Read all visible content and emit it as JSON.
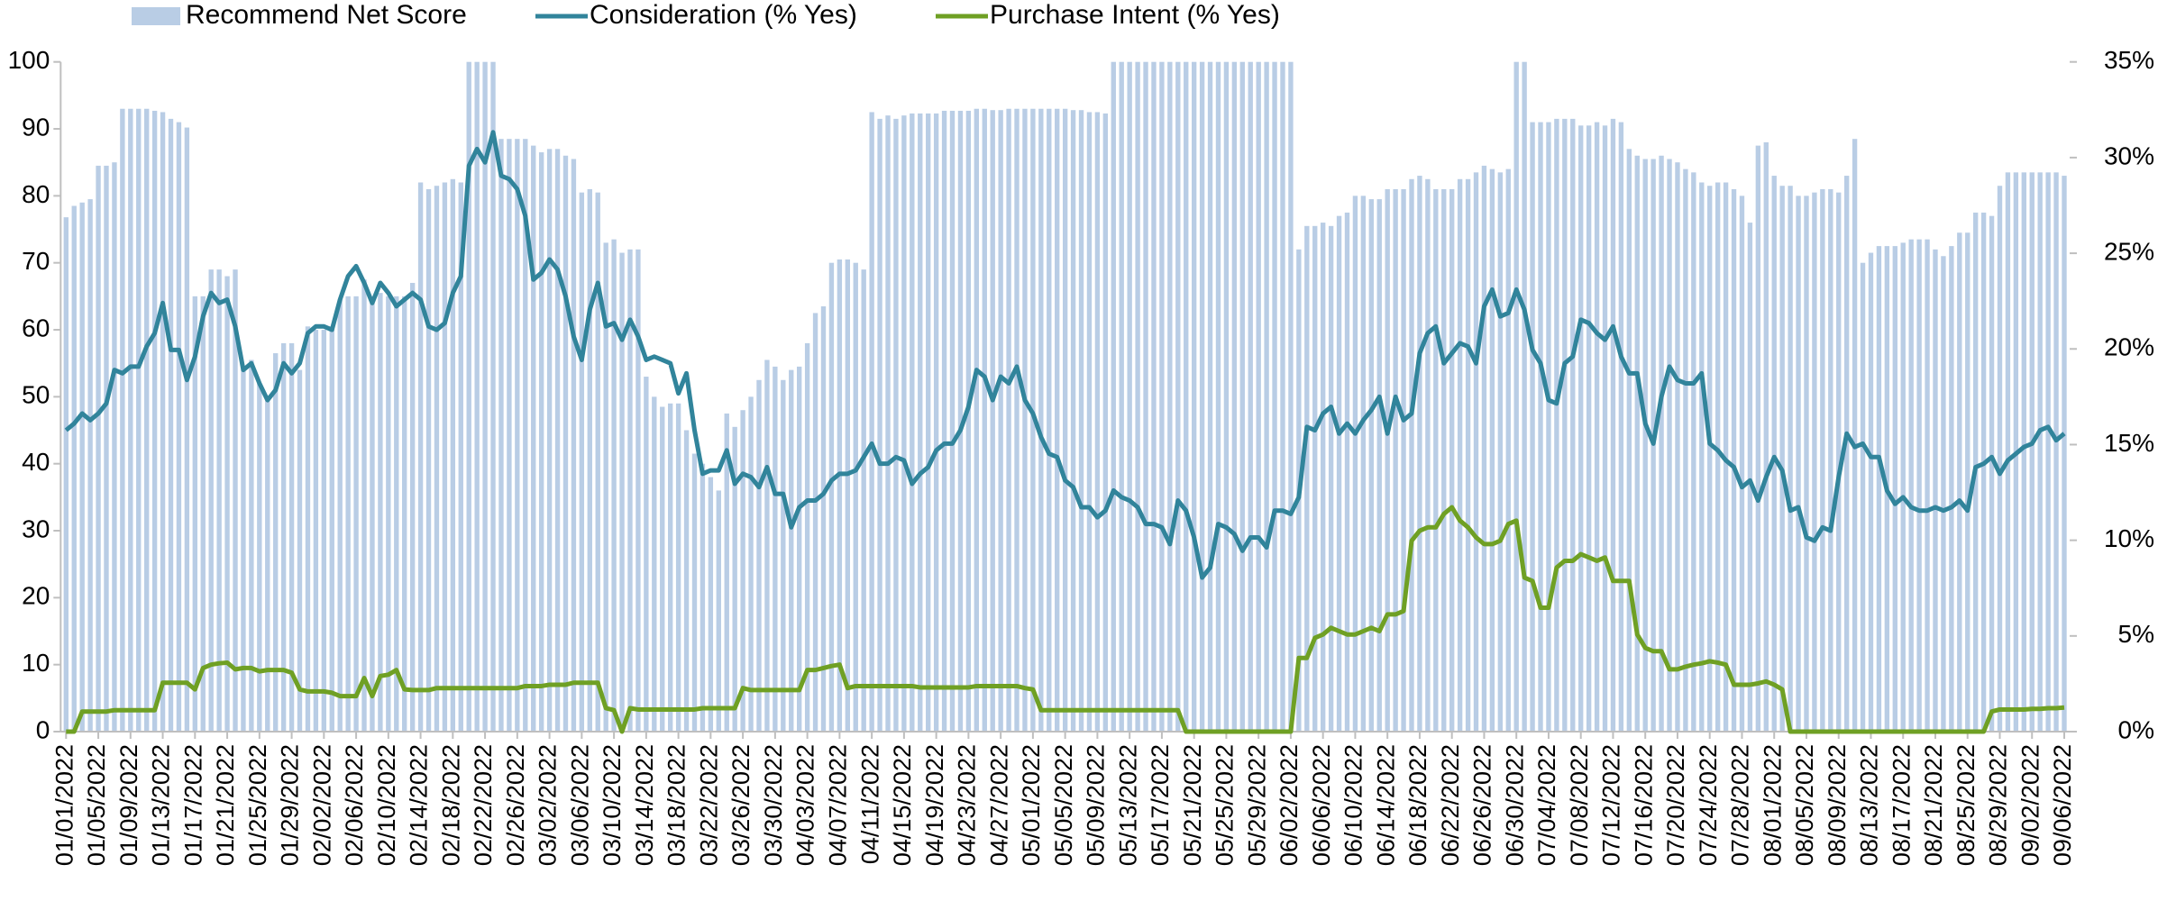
{
  "chart_data": {
    "type": "bar_line",
    "categories": [
      "01/01/2022",
      null,
      null,
      null,
      "01/05/2022",
      null,
      null,
      null,
      "01/09/2022",
      null,
      null,
      null,
      "01/13/2022",
      null,
      null,
      null,
      "01/17/2022",
      null,
      null,
      null,
      "01/21/2022",
      null,
      null,
      null,
      "01/25/2022",
      null,
      null,
      null,
      "01/29/2022",
      null,
      null,
      null,
      "02/02/2022",
      null,
      null,
      null,
      "02/06/2022",
      null,
      null,
      null,
      "02/10/2022",
      null,
      null,
      null,
      "02/14/2022",
      null,
      null,
      null,
      "02/18/2022",
      null,
      null,
      null,
      "02/22/2022",
      null,
      null,
      null,
      "02/26/2022",
      null,
      null,
      null,
      "03/02/2022",
      null,
      null,
      null,
      "03/06/2022",
      null,
      null,
      null,
      "03/10/2022",
      null,
      null,
      null,
      "03/14/2022",
      null,
      null,
      null,
      "03/18/2022",
      null,
      null,
      null,
      "03/22/2022",
      null,
      null,
      null,
      "03/26/2022",
      null,
      null,
      null,
      "03/30/2022",
      null,
      null,
      null,
      "04/03/2022",
      null,
      null,
      null,
      "04/07/2022",
      null,
      null,
      null,
      "04/11/2022",
      null,
      null,
      null,
      "04/15/2022",
      null,
      null,
      null,
      "04/19/2022",
      null,
      null,
      null,
      "04/23/2022",
      null,
      null,
      null,
      "04/27/2022",
      null,
      null,
      null,
      "05/01/2022",
      null,
      null,
      null,
      "05/05/2022",
      null,
      null,
      null,
      "05/09/2022",
      null,
      null,
      null,
      "05/13/2022",
      null,
      null,
      null,
      "05/17/2022",
      null,
      null,
      null,
      "05/21/2022",
      null,
      null,
      null,
      "05/25/2022",
      null,
      null,
      null,
      "05/29/2022",
      null,
      null,
      null,
      "06/02/2022",
      null,
      null,
      null,
      "06/06/2022",
      null,
      null,
      null,
      "06/10/2022",
      null,
      null,
      null,
      "06/14/2022",
      null,
      null,
      null,
      "06/18/2022",
      null,
      null,
      null,
      "06/22/2022",
      null,
      null,
      null,
      "06/26/2022",
      null,
      null,
      null,
      "06/30/2022",
      null,
      null,
      null,
      "07/04/2022",
      null,
      null,
      null,
      "07/08/2022",
      null,
      null,
      null,
      "07/12/2022",
      null,
      null,
      null,
      "07/16/2022",
      null,
      null,
      null,
      "07/20/2022",
      null,
      null,
      null,
      "07/24/2022",
      null,
      null,
      null,
      "07/28/2022",
      null,
      null,
      null,
      "08/01/2022",
      null,
      null,
      null,
      "08/05/2022",
      null,
      null,
      null,
      "08/09/2022",
      null,
      null,
      null,
      "08/13/2022",
      null,
      null,
      null,
      "08/17/2022",
      null,
      null,
      null,
      "08/21/2022",
      null,
      null,
      null,
      "08/25/2022",
      null,
      null,
      null,
      "08/29/2022",
      null,
      null,
      null,
      "09/02/2022",
      null,
      null,
      null,
      "09/06/2022"
    ],
    "series": [
      {
        "name": "Recommend Net Score",
        "type": "bar",
        "color": "#b9cde5",
        "values": [
          76.8,
          78.5,
          79,
          79.5,
          84.5,
          84.5,
          85,
          93,
          93,
          93,
          93,
          92.7,
          92.5,
          91.5,
          91,
          90.2,
          65,
          65,
          69,
          69,
          68,
          69,
          54.5,
          55.5,
          52,
          50,
          56.5,
          58,
          58,
          54,
          60.5,
          60,
          60,
          60.5,
          64.5,
          65,
          65,
          67.5,
          64,
          65.5,
          65,
          65,
          65,
          67,
          82,
          81,
          81.5,
          82,
          82.5,
          82,
          100,
          100,
          100,
          100,
          88.5,
          88.5,
          88.5,
          88.5,
          87.5,
          86.5,
          87,
          87,
          86,
          85.5,
          80.5,
          81,
          80.5,
          73,
          73.5,
          71.5,
          72,
          72,
          53,
          50,
          48.5,
          49,
          49,
          45,
          41.5,
          40,
          38,
          36,
          47.5,
          45.5,
          48,
          50,
          52.5,
          55.5,
          54.5,
          52.5,
          54,
          54.5,
          58,
          62.5,
          63.5,
          70,
          70.5,
          70.5,
          70,
          69,
          92.5,
          91.5,
          92,
          91.5,
          92,
          92.3,
          92.3,
          92.3,
          92.3,
          92.7,
          92.7,
          92.7,
          92.7,
          93,
          93,
          92.8,
          92.8,
          93,
          93,
          93,
          93,
          93,
          93,
          93,
          93,
          92.8,
          92.8,
          92.5,
          92.5,
          92.3,
          100,
          100,
          100,
          100,
          100,
          100,
          100,
          100,
          100,
          100,
          100,
          100,
          100,
          100,
          100,
          100,
          100,
          100,
          100,
          100,
          100,
          100,
          100,
          72,
          75.5,
          75.5,
          76,
          75.5,
          77,
          77.5,
          80,
          80,
          79.5,
          79.5,
          81,
          81,
          81,
          82.5,
          83,
          82.5,
          81,
          81,
          81,
          82.5,
          82.5,
          83.5,
          84.5,
          84,
          83.5,
          84,
          100,
          100,
          91,
          91,
          91,
          91.5,
          91.5,
          91.5,
          90.5,
          90.5,
          91,
          90.5,
          91.5,
          91,
          87,
          86,
          85.5,
          85.5,
          86,
          85.5,
          85,
          84,
          83.5,
          82,
          81.5,
          82,
          82,
          81,
          80,
          76,
          87.5,
          88,
          83,
          81.5,
          81.5,
          80,
          80,
          80.5,
          81,
          81,
          80.5,
          83,
          88.5,
          70,
          71.5,
          72.5,
          72.5,
          72.5,
          73,
          73.5,
          73.5,
          73.5,
          72,
          71,
          72.5,
          74.5,
          74.5,
          77.5,
          77.5,
          77,
          81.5,
          83.5,
          83.5,
          83.5,
          83.5,
          83.5,
          83.5,
          83.5,
          83
        ]
      },
      {
        "name": "Consideration (% Yes)",
        "type": "line",
        "color": "#31849b",
        "values": [
          45,
          46,
          47.5,
          46.5,
          47.5,
          49,
          54,
          53.5,
          54.5,
          54.5,
          57.5,
          59.5,
          64,
          57,
          57,
          52.5,
          56,
          62,
          65.5,
          64,
          64.5,
          60.5,
          54,
          55,
          52,
          49.5,
          51,
          55,
          53.5,
          55,
          59.5,
          60.5,
          60.5,
          60,
          64.5,
          68,
          69.5,
          67,
          64,
          67,
          65.5,
          63.5,
          64.5,
          65.5,
          64.5,
          60.5,
          60,
          61,
          65.5,
          68,
          84.5,
          87,
          85,
          89.5,
          83,
          82.5,
          81,
          77,
          67.5,
          68.5,
          70.5,
          69,
          65,
          59,
          55.5,
          63,
          67,
          60.5,
          61,
          58.5,
          61.5,
          59,
          55.5,
          56,
          55.5,
          55,
          50.5,
          53.5,
          45,
          38.5,
          39,
          39,
          42,
          37,
          38.5,
          38,
          36.5,
          39.5,
          35.5,
          35.5,
          30.5,
          33.5,
          34.5,
          34.5,
          35.5,
          37.5,
          38.5,
          38.5,
          39,
          41,
          43,
          40,
          40,
          41,
          40.5,
          37,
          38.5,
          39.5,
          42,
          43,
          43,
          45,
          48.5,
          54,
          53,
          49.5,
          53,
          52,
          54.5,
          49.5,
          47.5,
          44,
          41.5,
          41,
          37.5,
          36.5,
          33.5,
          33.5,
          32,
          33,
          36,
          35,
          34.5,
          33.5,
          31,
          31,
          30.5,
          28,
          34.5,
          33,
          29,
          23,
          24.5,
          31,
          30.5,
          29.5,
          27,
          29,
          29,
          27.5,
          33,
          33,
          32.5,
          35,
          45.5,
          45,
          47.5,
          48.5,
          44.5,
          46,
          44.5,
          46.5,
          48,
          50,
          44.5,
          50,
          46.5,
          47.5,
          56.5,
          59.5,
          60.5,
          55,
          56.5,
          58,
          57.5,
          55,
          63.5,
          66,
          62,
          62.5,
          66,
          63,
          57,
          55,
          49.5,
          49,
          55,
          56,
          61.5,
          61,
          59.5,
          58.5,
          60.5,
          56,
          53.5,
          53.5,
          46,
          43,
          50,
          54.5,
          52.5,
          52,
          52,
          53.5,
          43,
          42,
          40.5,
          39.5,
          36.5,
          37.5,
          34.5,
          38,
          41,
          39,
          33,
          33.5,
          29,
          28.5,
          30.5,
          30,
          38,
          44.5,
          42.5,
          43,
          41,
          41,
          36,
          34,
          35,
          33.5,
          33,
          33,
          33.5,
          33,
          33.5,
          34.5,
          33,
          39.5,
          40,
          41,
          38.5,
          40.5,
          41.5,
          42.5,
          43,
          45,
          45.5,
          43.5,
          44.5
        ]
      },
      {
        "name": "Purchase Intent (% Yes)",
        "type": "line",
        "color": "#6fa024",
        "values": [
          0,
          0,
          3,
          3,
          3,
          3,
          3.2,
          3.2,
          3.2,
          3.2,
          3.2,
          3.2,
          7.3,
          7.3,
          7.3,
          7.3,
          6.3,
          9.5,
          10,
          10.2,
          10.3,
          9.3,
          9.5,
          9.5,
          9,
          9.2,
          9.2,
          9.2,
          8.8,
          6.3,
          6,
          6,
          6,
          5.8,
          5.3,
          5.3,
          5.3,
          8,
          5.3,
          8.3,
          8.5,
          9.2,
          6.3,
          6.2,
          6.2,
          6.2,
          6.5,
          6.5,
          6.5,
          6.5,
          6.5,
          6.5,
          6.5,
          6.5,
          6.5,
          6.5,
          6.5,
          6.8,
          6.8,
          6.8,
          7,
          7,
          7,
          7.3,
          7.3,
          7.3,
          7.3,
          3.5,
          3.2,
          0,
          3.5,
          3.3,
          3.3,
          3.3,
          3.3,
          3.3,
          3.3,
          3.3,
          3.3,
          3.5,
          3.5,
          3.5,
          3.5,
          3.5,
          6.5,
          6.2,
          6.2,
          6.2,
          6.2,
          6.2,
          6.2,
          6.2,
          9.2,
          9.2,
          9.5,
          9.8,
          10,
          6.5,
          6.8,
          6.8,
          6.8,
          6.8,
          6.8,
          6.8,
          6.8,
          6.8,
          6.6,
          6.6,
          6.6,
          6.6,
          6.6,
          6.6,
          6.6,
          6.8,
          6.8,
          6.8,
          6.8,
          6.8,
          6.8,
          6.5,
          6.3,
          3.2,
          3.2,
          3.2,
          3.2,
          3.2,
          3.2,
          3.2,
          3.2,
          3.2,
          3.2,
          3.2,
          3.2,
          3.2,
          3.2,
          3.2,
          3.2,
          3.2,
          3.2,
          0,
          0,
          0,
          0,
          0,
          0,
          0,
          0,
          0,
          0,
          0,
          0,
          0,
          0,
          11,
          11,
          14,
          14.5,
          15.5,
          15,
          14.5,
          14.5,
          15,
          15.5,
          15,
          17.5,
          17.5,
          18,
          28.5,
          30,
          30.5,
          30.5,
          32.5,
          33.5,
          31.5,
          30.5,
          29,
          28,
          28,
          28.5,
          31,
          31.5,
          23,
          22.5,
          18.5,
          18.5,
          24.5,
          25.5,
          25.5,
          26.5,
          26,
          25.5,
          26,
          22.5,
          22.5,
          22.5,
          14.5,
          12.5,
          12,
          12,
          9.3,
          9.3,
          9.7,
          10,
          10.2,
          10.5,
          10.3,
          10,
          7,
          7,
          7,
          7.2,
          7.5,
          7,
          6.3,
          0,
          0,
          0,
          0,
          0,
          0,
          0,
          0,
          0,
          0,
          0,
          0,
          0,
          0,
          0,
          0,
          0,
          0,
          0,
          0,
          0,
          0,
          0,
          0,
          0,
          3,
          3.3,
          3.3,
          3.3,
          3.3,
          3.4,
          3.4,
          3.5,
          3.5,
          3.6
        ]
      }
    ],
    "ylim": [
      0,
      100
    ],
    "yticks": [
      0,
      10,
      20,
      30,
      40,
      50,
      60,
      70,
      80,
      90,
      100
    ],
    "y2lim": [
      0,
      35
    ],
    "y2ticks": [
      {
        "value": 0,
        "label": "0%"
      },
      {
        "value": 5,
        "label": "5%"
      },
      {
        "value": 10,
        "label": "10%"
      },
      {
        "value": 15,
        "label": "15%"
      },
      {
        "value": 20,
        "label": "20%"
      },
      {
        "value": 25,
        "label": "25%"
      },
      {
        "value": 30,
        "label": "30%"
      },
      {
        "value": 35,
        "label": "35%"
      }
    ],
    "grid": false,
    "legend": "top"
  }
}
